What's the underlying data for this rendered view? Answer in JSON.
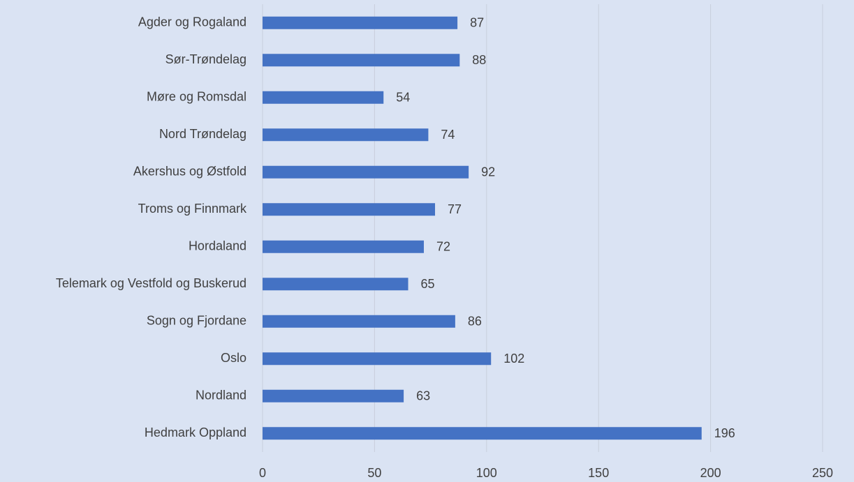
{
  "chart_data": {
    "type": "barh",
    "categories": [
      "Agder og Rogaland",
      "Sør-Trøndelag",
      "Møre og Romsdal",
      "Nord Trøndelag",
      "Akershus og Østfold",
      "Troms og Finnmark",
      "Hordaland",
      "Telemark og Vestfold og Buskerud",
      "Sogn og Fjordane",
      "Oslo",
      "Nordland",
      "Hedmark Oppland"
    ],
    "values": [
      87,
      88,
      54,
      74,
      92,
      77,
      72,
      65,
      86,
      102,
      63,
      196
    ],
    "color": "#4472c4",
    "xlim": [
      0,
      250
    ],
    "xticks": [
      0,
      50,
      100,
      150,
      200,
      250
    ],
    "grid": true
  }
}
